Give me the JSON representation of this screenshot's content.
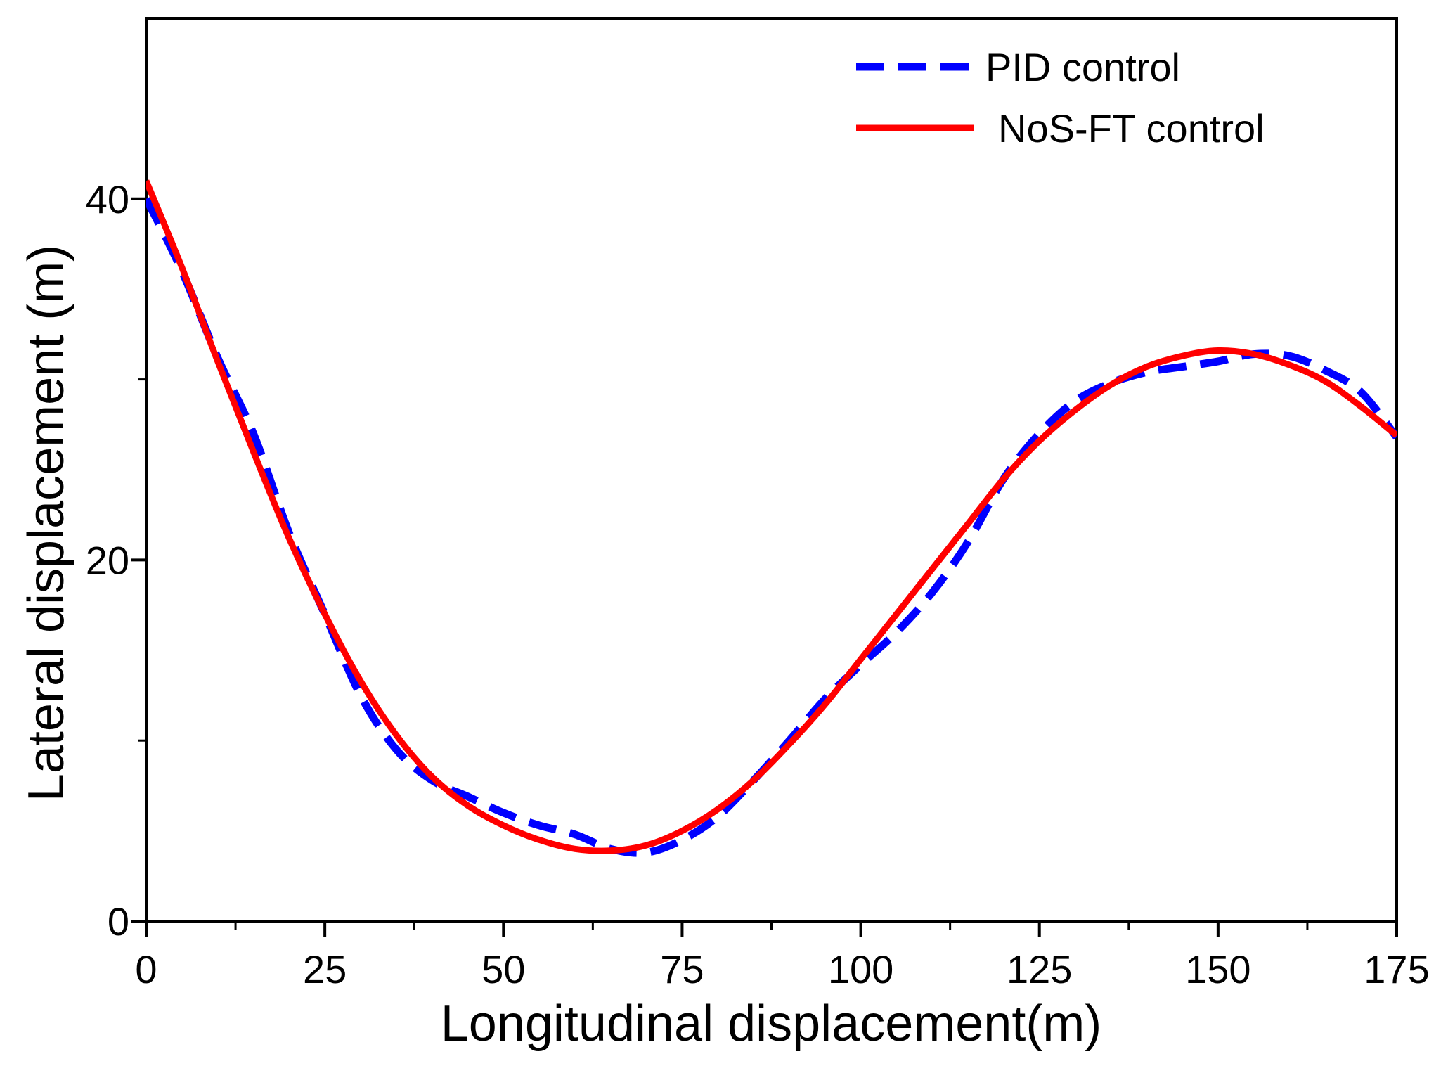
{
  "chart_data": {
    "type": "line",
    "title": "",
    "xlabel": "Longitudinal displacement(m)",
    "ylabel": "Lateral displacement (m)",
    "xlim": [
      0,
      175
    ],
    "ylim": [
      0,
      50
    ],
    "xticks": [
      0,
      25,
      50,
      75,
      100,
      125,
      150,
      175
    ],
    "yticks": [
      0,
      20,
      40
    ],
    "x_minor_ticks": [
      12.5,
      37.5,
      62.5,
      87.5,
      112.5,
      137.5,
      162.5
    ],
    "y_minor_ticks": [
      10,
      30
    ],
    "grid": false,
    "legend_position": "top-right",
    "series": [
      {
        "name": "PID control",
        "style": "dashed",
        "color": "#0000ff",
        "points": [
          [
            0,
            40.0
          ],
          [
            5,
            36.0
          ],
          [
            10,
            31.2
          ],
          [
            15,
            27.0
          ],
          [
            20,
            21.5
          ],
          [
            25,
            17.0
          ],
          [
            30,
            12.5
          ],
          [
            35,
            9.5
          ],
          [
            40,
            7.8
          ],
          [
            45,
            6.9
          ],
          [
            50,
            6.0
          ],
          [
            55,
            5.3
          ],
          [
            60,
            4.8
          ],
          [
            65,
            4.0
          ],
          [
            70,
            3.8
          ],
          [
            75,
            4.5
          ],
          [
            80,
            5.8
          ],
          [
            85,
            7.8
          ],
          [
            90,
            10.0
          ],
          [
            95,
            12.3
          ],
          [
            100,
            14.2
          ],
          [
            105,
            16.0
          ],
          [
            110,
            18.2
          ],
          [
            115,
            21.0
          ],
          [
            120,
            24.5
          ],
          [
            125,
            27.0
          ],
          [
            130,
            28.8
          ],
          [
            135,
            29.8
          ],
          [
            140,
            30.4
          ],
          [
            145,
            30.7
          ],
          [
            150,
            31.0
          ],
          [
            155,
            31.4
          ],
          [
            160,
            31.3
          ],
          [
            165,
            30.5
          ],
          [
            170,
            29.3
          ],
          [
            175,
            26.8
          ]
        ]
      },
      {
        "name": "NoS-FT control",
        "style": "solid",
        "color": "#ff0000",
        "points": [
          [
            0,
            41.0
          ],
          [
            5,
            36.2
          ],
          [
            10,
            31.0
          ],
          [
            15,
            26.0
          ],
          [
            20,
            21.2
          ],
          [
            25,
            17.0
          ],
          [
            30,
            13.3
          ],
          [
            35,
            10.3
          ],
          [
            40,
            8.0
          ],
          [
            45,
            6.4
          ],
          [
            50,
            5.3
          ],
          [
            55,
            4.5
          ],
          [
            60,
            4.0
          ],
          [
            65,
            3.9
          ],
          [
            70,
            4.2
          ],
          [
            75,
            5.0
          ],
          [
            80,
            6.2
          ],
          [
            85,
            7.8
          ],
          [
            90,
            9.8
          ],
          [
            95,
            12.0
          ],
          [
            100,
            14.5
          ],
          [
            105,
            17.0
          ],
          [
            110,
            19.5
          ],
          [
            115,
            22.0
          ],
          [
            120,
            24.5
          ],
          [
            125,
            26.6
          ],
          [
            130,
            28.3
          ],
          [
            135,
            29.7
          ],
          [
            140,
            30.7
          ],
          [
            145,
            31.3
          ],
          [
            150,
            31.6
          ],
          [
            155,
            31.4
          ],
          [
            160,
            30.8
          ],
          [
            165,
            29.9
          ],
          [
            170,
            28.5
          ],
          [
            175,
            26.9
          ]
        ]
      }
    ]
  }
}
